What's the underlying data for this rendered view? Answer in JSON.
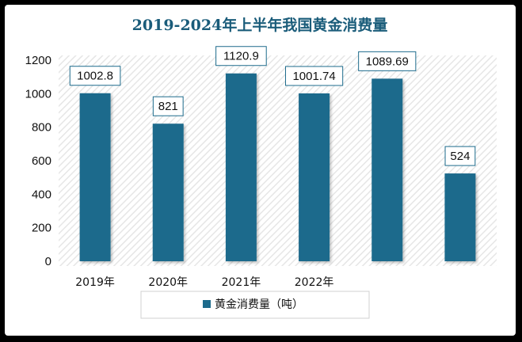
{
  "chart_data": {
    "type": "bar",
    "title": "2019-2024年上半年我国黄金消费量",
    "categories": [
      "2019年",
      "2020年",
      "2021年",
      "2022年",
      "",
      ""
    ],
    "series": [
      {
        "name": "黄金消费量（吨）",
        "values": [
          1002.8,
          821,
          1120.9,
          1001.74,
          1089.69,
          524
        ]
      }
    ],
    "data_labels": [
      "1002.8",
      "821",
      "1120.9",
      "1001.74",
      "1089.69",
      "524"
    ],
    "y_ticks": [
      "0",
      "200",
      "400",
      "600",
      "800",
      "1000",
      "1200"
    ],
    "ylim": [
      0,
      1200
    ],
    "xlabel": "",
    "ylabel": "",
    "grid": false,
    "legend_position": "bottom",
    "colors": {
      "bar": "#1d6b8c",
      "title": "#1a5c7a",
      "label_border": "#1d6b8c"
    }
  }
}
